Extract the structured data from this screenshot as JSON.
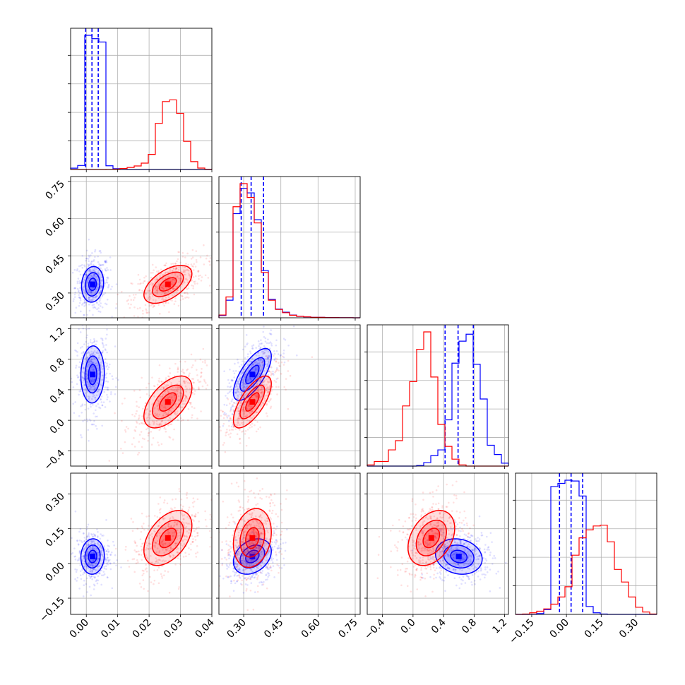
{
  "colors": {
    "blue": "#0000ff",
    "red": "#ff0000",
    "grid": "#b0b0b0",
    "axis": "#000000",
    "background": "#ffffff"
  },
  "chart_data": {
    "type": "corner",
    "grid": true,
    "parameters": 4,
    "axes": [
      {
        "range": [
          -0.005,
          0.04
        ],
        "ticks": [
          0.0,
          0.01,
          0.02,
          0.03,
          0.04
        ],
        "tick_labels": [
          "0.00",
          "0.01",
          "0.02",
          "0.03",
          "0.04"
        ]
      },
      {
        "range": [
          0.2,
          0.77
        ],
        "ticks": [
          0.3,
          0.45,
          0.6,
          0.75
        ],
        "tick_labels": [
          "0.30",
          "0.45",
          "0.60",
          "0.75"
        ]
      },
      {
        "range": [
          -0.6,
          1.25
        ],
        "ticks": [
          -0.4,
          0.0,
          0.4,
          0.8,
          1.2
        ],
        "tick_labels": [
          "−0.4",
          "0.0",
          "0.4",
          "0.8",
          "1.2"
        ]
      },
      {
        "range": [
          -0.22,
          0.39
        ],
        "ticks": [
          -0.15,
          0.0,
          0.15,
          0.3
        ],
        "tick_labels": [
          "−0.15",
          "0.00",
          "0.15",
          "0.30"
        ]
      }
    ],
    "histograms": [
      {
        "param": 0,
        "bins": 20,
        "series": [
          {
            "color": "blue",
            "quantiles": [
              -0.0002,
              0.0018,
              0.0038
            ],
            "counts": [
              80,
              240,
              8000,
              7800,
              7600,
              220,
              50,
              5,
              0,
              0,
              0,
              0,
              0,
              0,
              0,
              0,
              0,
              0,
              0,
              0
            ]
          },
          {
            "color": "red",
            "quantiles": null,
            "counts": [
              0,
              0,
              0,
              0,
              0,
              5,
              20,
              60,
              120,
              210,
              380,
              900,
              2750,
              4050,
              4150,
              3350,
              1680,
              470,
              85,
              10
            ]
          }
        ]
      },
      {
        "param": 1,
        "bins": 20,
        "series": [
          {
            "color": "blue",
            "quantiles": [
              0.29,
              0.33,
              0.38
            ],
            "counts": [
              50,
              380,
              2250,
              2800,
              2700,
              2120,
              1020,
              400,
              190,
              120,
              60,
              30,
              20,
              10,
              10,
              5,
              5,
              3,
              2,
              0
            ]
          },
          {
            "color": "red",
            "quantiles": null,
            "counts": [
              60,
              450,
              2400,
              2900,
              2600,
              2050,
              980,
              380,
              180,
              110,
              55,
              30,
              20,
              10,
              10,
              5,
              5,
              3,
              2,
              0
            ]
          }
        ]
      },
      {
        "param": 2,
        "bins": 20,
        "series": [
          {
            "color": "blue",
            "quantiles": [
              0.42,
              0.59,
              0.79
            ],
            "counts": [
              0,
              0,
              0,
              0,
              0,
              0,
              0,
              5,
              30,
              90,
              140,
              400,
              890,
              1080,
              1140,
              880,
              580,
              180,
              100,
              25
            ]
          },
          {
            "color": "red",
            "quantiles": null,
            "counts": [
              10,
              40,
              40,
              140,
              220,
              520,
              730,
              1010,
              1160,
              770,
              360,
              170,
              60,
              10,
              0,
              0,
              0,
              0,
              0,
              0
            ]
          }
        ]
      },
      {
        "param": 3,
        "bins": 20,
        "series": [
          {
            "color": "blue",
            "quantiles": [
              -0.03,
              0.02,
              0.07
            ],
            "counts": [
              0,
              0,
              0,
              10,
              60,
              1620,
              1660,
              1700,
              1690,
              1500,
              100,
              20,
              5,
              0,
              0,
              0,
              0,
              0,
              0,
              0
            ]
          },
          {
            "color": "red",
            "quantiles": null,
            "counts": [
              0,
              5,
              20,
              40,
              70,
              130,
              220,
              350,
              750,
              970,
              1070,
              1120,
              1130,
              920,
              570,
              410,
              220,
              90,
              30,
              5
            ]
          }
        ]
      }
    ],
    "scatter_2d": [
      {
        "x": 0,
        "y": 1,
        "series": [
          {
            "color": "blue",
            "center": [
              0.002,
              0.335
            ],
            "sd": [
              0.0022,
              0.045
            ],
            "corr": 0.1,
            "levels": [
              1.6,
              1.05,
              0.55
            ]
          },
          {
            "color": "red",
            "center": [
              0.026,
              0.335
            ],
            "sd": [
              0.0045,
              0.045
            ],
            "corr": 0.55,
            "levels": [
              1.7,
              1.1,
              0.6
            ]
          }
        ]
      },
      {
        "x": 0,
        "y": 2,
        "series": [
          {
            "color": "blue",
            "center": [
              0.002,
              0.6
            ],
            "sd": [
              0.0022,
              0.22
            ],
            "corr": 0.05,
            "levels": [
              1.7,
              1.1,
              0.6
            ]
          },
          {
            "color": "red",
            "center": [
              0.026,
              0.24
            ],
            "sd": [
              0.0045,
              0.2
            ],
            "corr": 0.55,
            "levels": [
              1.7,
              1.1,
              0.6
            ]
          }
        ]
      },
      {
        "x": 0,
        "y": 3,
        "series": [
          {
            "color": "blue",
            "center": [
              0.002,
              0.03
            ],
            "sd": [
              0.0022,
              0.045
            ],
            "corr": 0.05,
            "levels": [
              1.7,
              1.1,
              0.6
            ]
          },
          {
            "color": "red",
            "center": [
              0.026,
              0.11
            ],
            "sd": [
              0.0045,
              0.07
            ],
            "corr": 0.45,
            "levels": [
              1.7,
              1.1,
              0.6
            ]
          }
        ]
      },
      {
        "x": 1,
        "y": 2,
        "series": [
          {
            "color": "blue",
            "center": [
              0.335,
              0.6
            ],
            "sd": [
              0.045,
              0.2
            ],
            "corr": 0.7,
            "levels": [
              1.7,
              1.1,
              0.6
            ]
          },
          {
            "color": "red",
            "center": [
              0.335,
              0.24
            ],
            "sd": [
              0.045,
              0.2
            ],
            "corr": 0.7,
            "levels": [
              1.7,
              1.1,
              0.6
            ]
          }
        ]
      },
      {
        "x": 1,
        "y": 3,
        "series": [
          {
            "color": "blue",
            "center": [
              0.335,
              0.03
            ],
            "sd": [
              0.045,
              0.045
            ],
            "corr": 0.3,
            "levels": [
              1.7,
              1.1,
              0.6
            ]
          },
          {
            "color": "red",
            "center": [
              0.335,
              0.11
            ],
            "sd": [
              0.045,
              0.075
            ],
            "corr": 0.2,
            "levels": [
              1.7,
              1.1,
              0.6
            ]
          }
        ]
      },
      {
        "x": 2,
        "y": 3,
        "series": [
          {
            "color": "blue",
            "center": [
              0.6,
              0.03
            ],
            "sd": [
              0.18,
              0.045
            ],
            "corr": -0.15,
            "levels": [
              1.7,
              1.1,
              0.6
            ]
          },
          {
            "color": "red",
            "center": [
              0.24,
              0.11
            ],
            "sd": [
              0.18,
              0.07
            ],
            "corr": 0.35,
            "levels": [
              1.7,
              1.1,
              0.6
            ]
          }
        ]
      }
    ]
  }
}
